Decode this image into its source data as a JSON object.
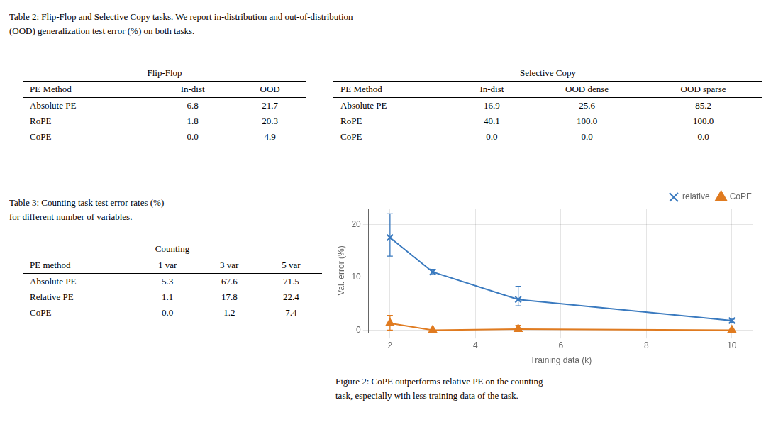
{
  "chart_data": [
    {
      "type": "table",
      "title": "Flip-Flop",
      "xlabel": "PE Method",
      "annotations": [
        "Table 2: Flip-Flop and Selective Copy tasks. We report in-distribution and out-of-distribution",
        "(OOD) generalization test error (%) on both tasks."
      ],
      "categories": [
        "Absolute PE",
        "RoPE",
        "CoPE"
      ],
      "series": [
        {
          "name": "In-dist",
          "values": [
            6.8,
            1.8,
            0.0
          ],
          "value_labels": [
            "6.8",
            "1.8",
            "0.0"
          ]
        },
        {
          "name": "OOD",
          "values": [
            21.7,
            20.3,
            4.9
          ],
          "value_labels": [
            "21.7",
            "20.3",
            "4.9"
          ]
        }
      ]
    },
    {
      "type": "table",
      "title": "Selective Copy",
      "xlabel": "PE Method",
      "categories": [
        "Absolute PE",
        "RoPE",
        "CoPE"
      ],
      "series": [
        {
          "name": "In-dist",
          "values": [
            16.9,
            40.1,
            0.0
          ],
          "value_labels": [
            "16.9",
            "40.1",
            "0.0"
          ]
        },
        {
          "name": "OOD dense",
          "values": [
            25.6,
            100.0,
            0.0
          ],
          "value_labels": [
            "25.6",
            "100.0",
            "0.0"
          ]
        },
        {
          "name": "OOD sparse",
          "values": [
            85.2,
            100.0,
            0.0
          ],
          "value_labels": [
            "85.2",
            "100.0",
            "0.0"
          ]
        }
      ]
    },
    {
      "type": "table",
      "title": "Counting",
      "xlabel": "PE method",
      "annotations": [
        "Table 3: Counting task test error rates (%)",
        "for different number of variables."
      ],
      "categories": [
        "Absolute PE",
        "Relative PE",
        "CoPE"
      ],
      "series": [
        {
          "name": "1 var",
          "values": [
            5.3,
            1.1,
            0.0
          ],
          "value_labels": [
            "5.3",
            "1.1",
            "0.0"
          ]
        },
        {
          "name": "3 var",
          "values": [
            67.6,
            17.8,
            1.2
          ],
          "value_labels": [
            "67.6",
            "17.8",
            "1.2"
          ]
        },
        {
          "name": "5 var",
          "values": [
            71.5,
            22.4,
            7.4
          ],
          "value_labels": [
            "71.5",
            "22.4",
            "7.4"
          ]
        }
      ]
    },
    {
      "type": "line",
      "xlabel": "Training data (k)",
      "ylabel": "Val. error (%)",
      "annotations": [
        "Figure 2: CoPE outperforms relative PE on the counting",
        "task, especially with less training data of the task."
      ],
      "x": [
        2,
        3,
        5,
        10
      ],
      "xlim": [
        1.5,
        10.5
      ],
      "ylim": [
        -0.5,
        23
      ],
      "xticks": [
        2,
        4,
        6,
        8,
        10
      ],
      "yticks": [
        0,
        10,
        20
      ],
      "grid": true,
      "legend": "upper right",
      "series": [
        {
          "name": "relative",
          "color": "#3a7abf",
          "marker": "x",
          "values": [
            17.5,
            11.0,
            5.8,
            1.8
          ],
          "yerr_lo": [
            3.5,
            0.5,
            1.2,
            0.3
          ],
          "yerr_hi": [
            4.5,
            0.5,
            2.5,
            0.3
          ]
        },
        {
          "name": "CoPE",
          "color": "#e07b20",
          "marker": "triangle",
          "values": [
            1.3,
            0.0,
            0.2,
            0.0
          ],
          "yerr_lo": [
            1.3,
            0.05,
            0.2,
            0.05
          ],
          "yerr_hi": [
            1.5,
            0.05,
            0.7,
            0.05
          ]
        }
      ]
    }
  ]
}
